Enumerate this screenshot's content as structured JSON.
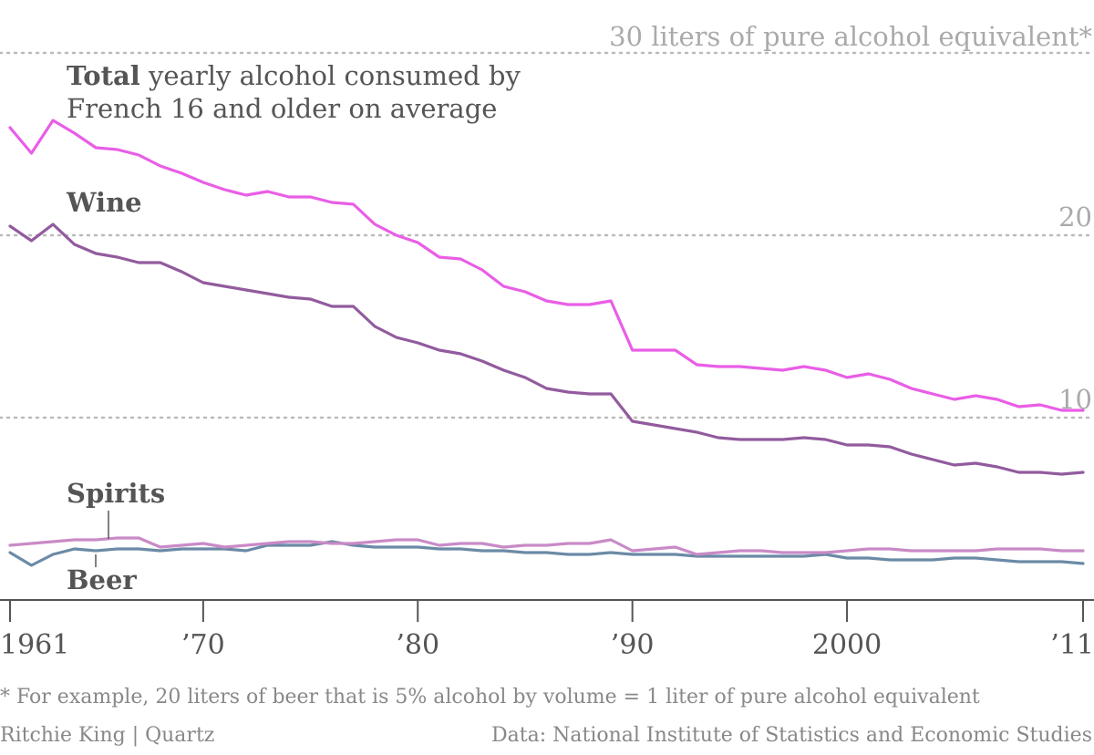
{
  "chart_data": {
    "type": "line",
    "title_bold": "Total",
    "title_line1": " yearly alcohol consumed by",
    "title_line2": "French 16 and older on average",
    "y_unit_label": "30 liters of pure alcohol equivalent*",
    "y_ticks": [
      {
        "value": 30,
        "label": ""
      },
      {
        "value": 20,
        "label": "20"
      },
      {
        "value": 10,
        "label": "10"
      }
    ],
    "x_ticks": [
      {
        "value": 1961,
        "label": "1961"
      },
      {
        "value": 1970,
        "label": "’70"
      },
      {
        "value": 1980,
        "label": "’80"
      },
      {
        "value": 1990,
        "label": "’90"
      },
      {
        "value": 2000,
        "label": "2000"
      },
      {
        "value": 2011,
        "label": "’11"
      }
    ],
    "xlim": [
      1961,
      2011
    ],
    "ylim": [
      0,
      30
    ],
    "grid": true,
    "x": [
      1961,
      1962,
      1963,
      1964,
      1965,
      1966,
      1967,
      1968,
      1969,
      1970,
      1971,
      1972,
      1973,
      1974,
      1975,
      1976,
      1977,
      1978,
      1979,
      1980,
      1981,
      1982,
      1983,
      1984,
      1985,
      1986,
      1987,
      1988,
      1989,
      1990,
      1991,
      1992,
      1993,
      1994,
      1995,
      1996,
      1997,
      1998,
      1999,
      2000,
      2001,
      2002,
      2003,
      2004,
      2005,
      2006,
      2007,
      2008,
      2009,
      2010,
      2011
    ],
    "series": [
      {
        "name": "Total",
        "color": "#e95ee6",
        "values": [
          25.9,
          24.5,
          26.3,
          25.6,
          24.8,
          24.7,
          24.4,
          23.8,
          23.4,
          22.9,
          22.5,
          22.2,
          22.4,
          22.1,
          22.1,
          21.8,
          21.7,
          20.6,
          20.0,
          19.6,
          18.8,
          18.7,
          18.1,
          17.2,
          16.9,
          16.4,
          16.2,
          16.2,
          16.4,
          13.7,
          13.7,
          13.7,
          12.9,
          12.8,
          12.8,
          12.7,
          12.6,
          12.8,
          12.6,
          12.2,
          12.4,
          12.1,
          11.6,
          11.3,
          11.0,
          11.2,
          11.0,
          10.6,
          10.7,
          10.4,
          10.4
        ]
      },
      {
        "name": "Wine",
        "color": "#925b9e",
        "values": [
          20.5,
          19.7,
          20.6,
          19.5,
          19.0,
          18.8,
          18.5,
          18.5,
          18.0,
          17.4,
          17.2,
          17.0,
          16.8,
          16.6,
          16.5,
          16.1,
          16.1,
          15.0,
          14.4,
          14.1,
          13.7,
          13.5,
          13.1,
          12.6,
          12.2,
          11.6,
          11.4,
          11.3,
          11.3,
          9.8,
          9.6,
          9.4,
          9.2,
          8.9,
          8.8,
          8.8,
          8.8,
          8.9,
          8.8,
          8.5,
          8.5,
          8.4,
          8.0,
          7.7,
          7.4,
          7.5,
          7.3,
          7.0,
          7.0,
          6.9,
          7.0
        ]
      },
      {
        "name": "Spirits",
        "color": "#c98ac6",
        "values": [
          3.0,
          3.1,
          3.2,
          3.3,
          3.3,
          3.4,
          3.4,
          2.9,
          3.0,
          3.1,
          2.9,
          3.0,
          3.1,
          3.2,
          3.2,
          3.1,
          3.1,
          3.2,
          3.3,
          3.3,
          3.0,
          3.1,
          3.1,
          2.9,
          3.0,
          3.0,
          3.1,
          3.1,
          3.3,
          2.7,
          2.8,
          2.9,
          2.5,
          2.6,
          2.7,
          2.7,
          2.6,
          2.6,
          2.6,
          2.7,
          2.8,
          2.8,
          2.7,
          2.7,
          2.7,
          2.7,
          2.8,
          2.8,
          2.8,
          2.7,
          2.7
        ]
      },
      {
        "name": "Beer",
        "color": "#6b8aa6",
        "values": [
          2.6,
          1.9,
          2.5,
          2.8,
          2.7,
          2.8,
          2.8,
          2.7,
          2.8,
          2.8,
          2.8,
          2.7,
          3.0,
          3.0,
          3.0,
          3.2,
          3.0,
          2.9,
          2.9,
          2.9,
          2.8,
          2.8,
          2.7,
          2.7,
          2.6,
          2.6,
          2.5,
          2.5,
          2.6,
          2.5,
          2.5,
          2.5,
          2.4,
          2.4,
          2.4,
          2.4,
          2.4,
          2.4,
          2.5,
          2.3,
          2.3,
          2.2,
          2.2,
          2.2,
          2.3,
          2.3,
          2.2,
          2.1,
          2.1,
          2.1,
          2.0
        ]
      }
    ],
    "series_labels": {
      "total": "Total",
      "wine": "Wine",
      "spirits": "Spirits",
      "beer": "Beer"
    },
    "footnote": "* For example, 20 liters of beer that is 5% alcohol by volume = 1 liter of pure alcohol equivalent",
    "credit": "Ritchie King | Quartz",
    "source": "Data: National Institute of Statistics and Economic Studies"
  }
}
